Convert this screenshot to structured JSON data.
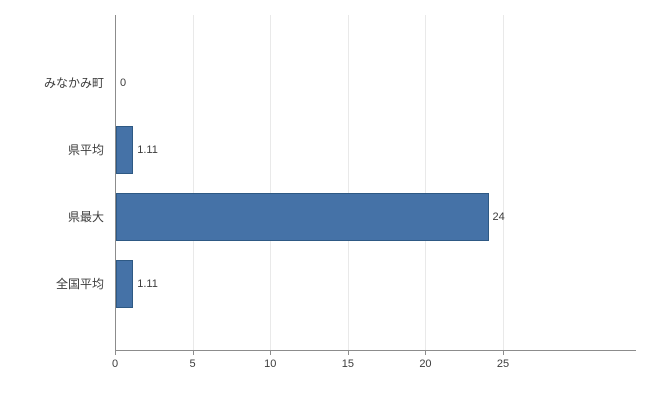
{
  "chart_data": {
    "type": "bar",
    "orientation": "horizontal",
    "title": "",
    "xlabel": "",
    "ylabel": "",
    "categories": [
      "みなかみ町",
      "県平均",
      "県最大",
      "全国平均"
    ],
    "values": [
      0,
      1.11,
      24,
      1.11
    ],
    "value_labels": [
      "0",
      "1.11",
      "24",
      "1.11"
    ],
    "x_ticks": [
      0,
      5,
      10,
      15,
      20,
      25
    ],
    "x_tick_labels": [
      "0",
      "5",
      "10",
      "15",
      "20",
      "25"
    ],
    "xlim": [
      0,
      33.5
    ],
    "grid": true,
    "legend": "none",
    "colors": {
      "bar_fill": "#4572A7",
      "bar_border": "#2e5984",
      "axis_line": "#8c8c8c",
      "gridline": "#e9e9e9",
      "text": "#3c3c3c",
      "background": "#ffffff"
    }
  }
}
